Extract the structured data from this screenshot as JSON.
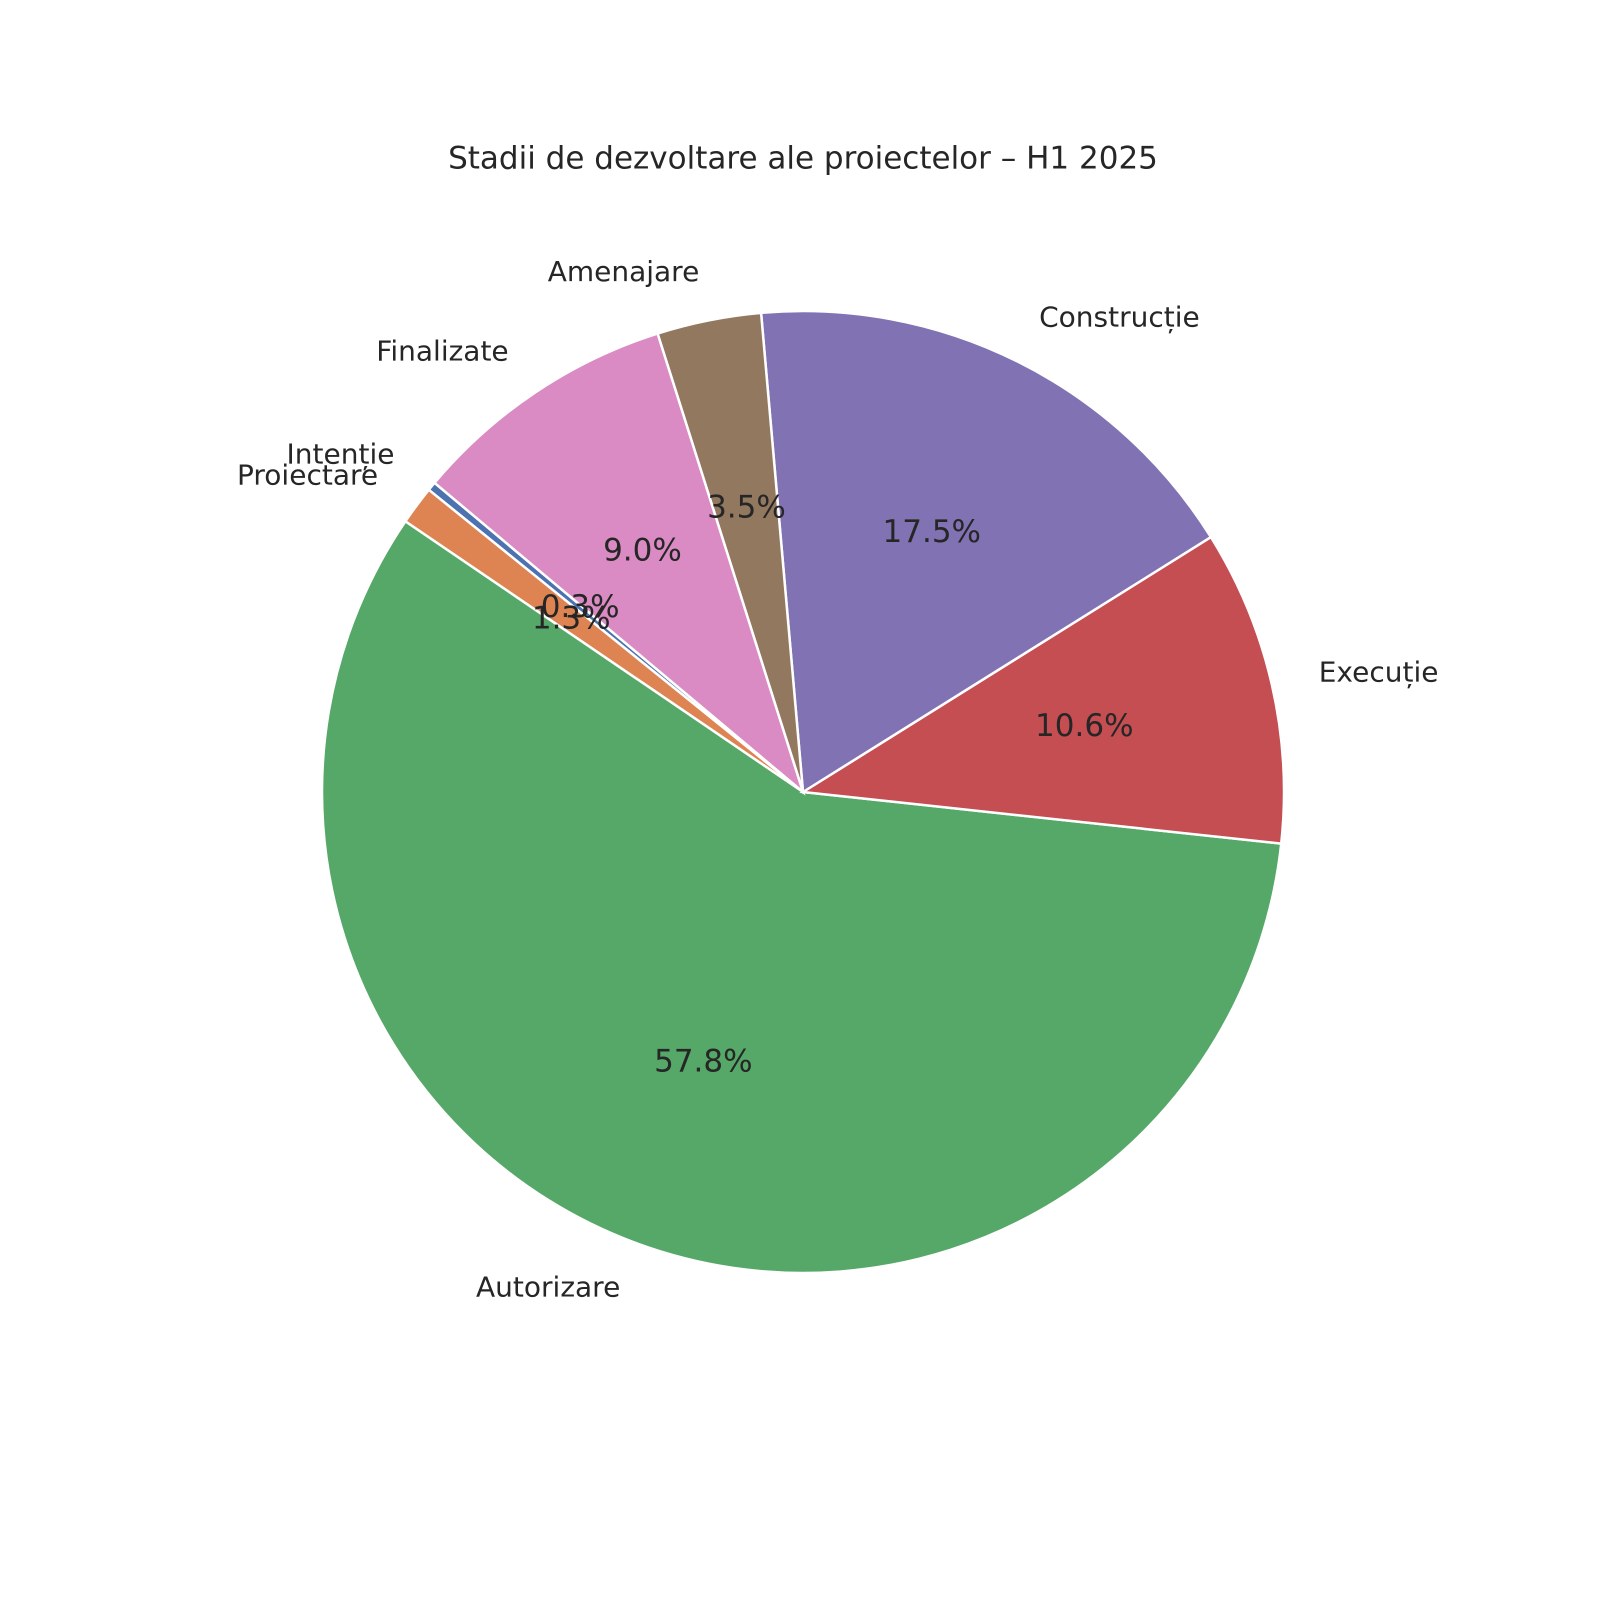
{
  "chart_data": {
    "type": "pie",
    "title": "Stadii de dezvoltare ale proiectelor – H1 2025",
    "categories": [
      "Intenție",
      "Proiectare",
      "Autorizare",
      "Execuție",
      "Construcție",
      "Amenajare",
      "Finalizate"
    ],
    "values": [
      0.3,
      1.3,
      57.8,
      10.6,
      17.5,
      3.5,
      9.0
    ],
    "value_labels": [
      "0.3%",
      "1.3%",
      "57.8%",
      "10.6%",
      "17.5%",
      "3.5%",
      "9.0%"
    ],
    "colors": [
      "#4c72b0",
      "#dd8452",
      "#55a868",
      "#c44e52",
      "#8172b3",
      "#937860",
      "#da8bc3"
    ]
  }
}
